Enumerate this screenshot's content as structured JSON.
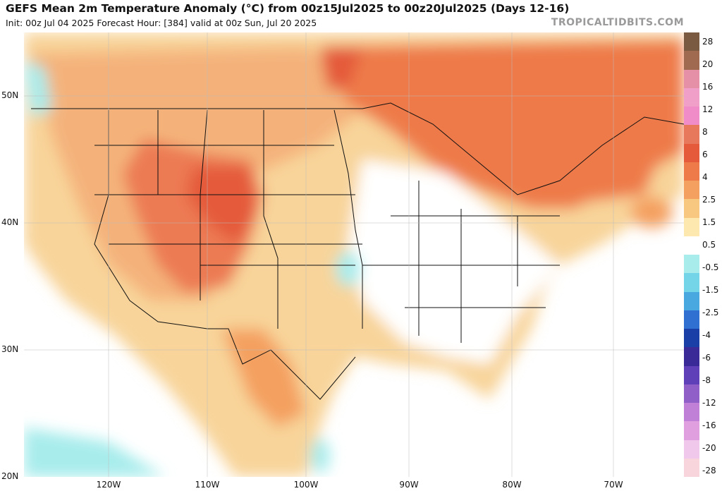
{
  "title": "GEFS Mean 2m Temperature Anomaly (°C) from 00z15Jul2025 to 00z20Jul2025 (Days 12-16)",
  "subtitle": "Init: 00z Jul 04 2025   Forecast Hour: [384]   valid at 00z Sun, Jul 20 2025",
  "watermark": "TROPICALTIDBITS.COM",
  "lat_labels": [
    "50N",
    "40N",
    "30N",
    "20N"
  ],
  "lon_labels": [
    "120W",
    "110W",
    "100W",
    "90W",
    "80W",
    "70W"
  ],
  "colorbar": {
    "labels": [
      "28",
      "20",
      "16",
      "12",
      "8",
      "6",
      "4",
      "2.5",
      "1.5",
      "0.5",
      "-0.5",
      "-1.5",
      "-2.5",
      "-4",
      "-6",
      "-8",
      "-12",
      "-16",
      "-20",
      "-28"
    ],
    "colors": [
      "#7a5a40",
      "#a06a50",
      "#e690a8",
      "#f0a0c8",
      "#f08cc8",
      "#e8785c",
      "#e45a3a",
      "#ee7a4a",
      "#f4a060",
      "#f8c880",
      "#fde8b0",
      "#ffffff",
      "#a8ecec",
      "#74d4e8",
      "#4aa8e0",
      "#3070d0",
      "#1a40a8",
      "#3a2a98",
      "#6040b8",
      "#9060c8",
      "#c080d8",
      "#e0a0e0",
      "#f0c8ec",
      "#f8d4dc"
    ],
    "scale_note": ""
  }
}
